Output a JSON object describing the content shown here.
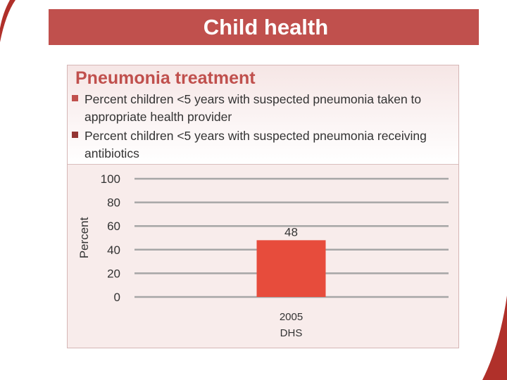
{
  "slide": {
    "title": "Child health"
  },
  "colors": {
    "title_bar": "#c0504d",
    "chart_title": "#c0504d",
    "legend_1": "#c0504d",
    "legend_2": "#943634",
    "bar": "#e74c3c",
    "gridline": "#a6a6a6"
  },
  "chart_data": {
    "type": "bar",
    "title": "Pneumonia treatment",
    "categories": [
      "2005\nDHS"
    ],
    "series": [
      {
        "name": "Percent children <5 years with suspected pneumonia taken to appropriate health provider",
        "values": [
          48
        ],
        "color": "#e74c3c"
      },
      {
        "name": "Percent children <5 years with suspected pneumonia receiving antibiotics",
        "values": [
          null
        ],
        "color": "#943634"
      }
    ],
    "data_labels": [
      "48"
    ],
    "xlabel": "",
    "ylabel": "Percent",
    "ylim": [
      0,
      100
    ],
    "yticks": [
      0,
      20,
      40,
      60,
      80,
      100
    ],
    "grid": true,
    "legend_position": "top"
  }
}
